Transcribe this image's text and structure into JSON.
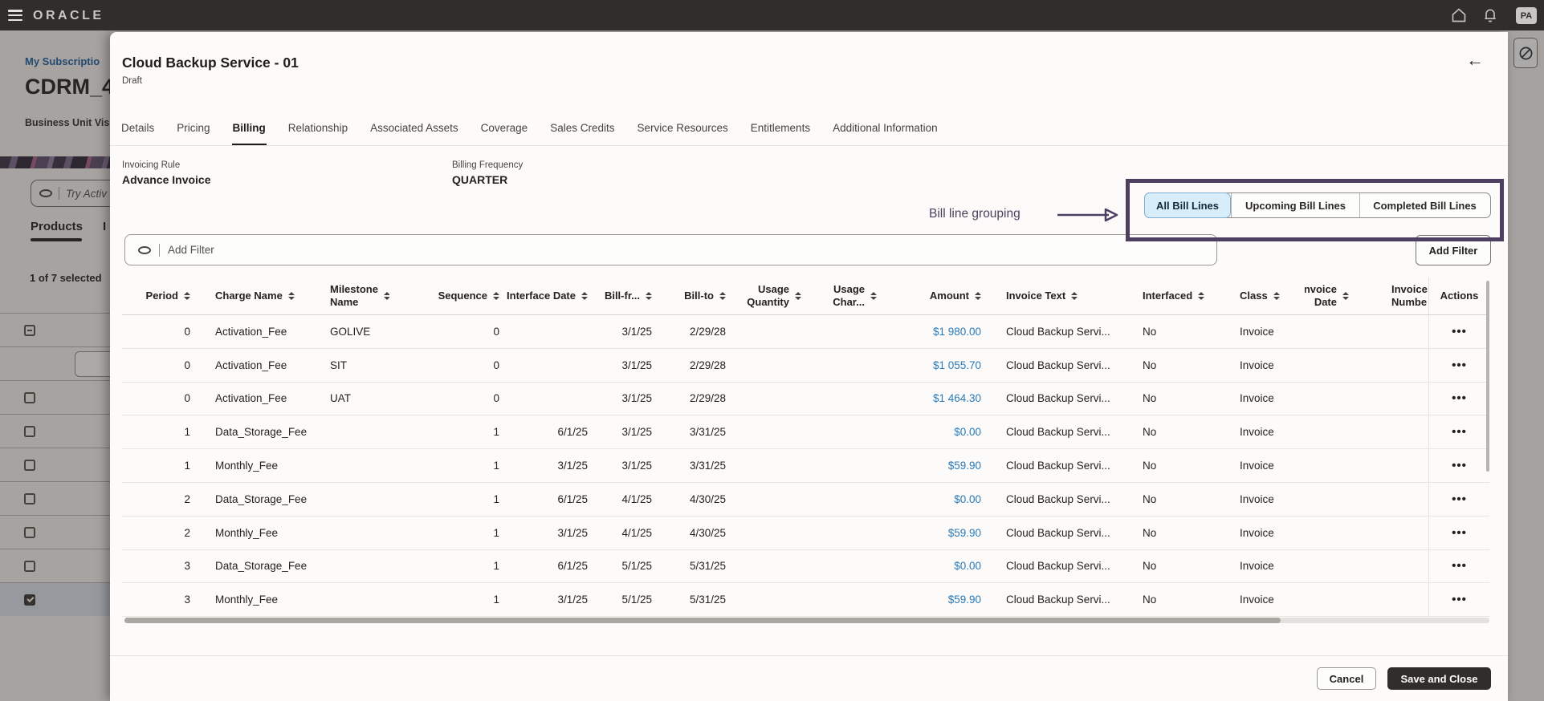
{
  "topbar": {
    "brand": "ORACLE",
    "avatar_initials": "PA"
  },
  "backdrop": {
    "breadcrumb": "My Subscriptio",
    "title": "CDRM_4",
    "subtitle": "Business Unit Visi",
    "assistant_placeholder": "Try Activ",
    "tab_primary": "Products",
    "tab_secondary": "I",
    "selection_summary": "1 of 7 selected",
    "rows": [
      "indeterminate",
      "field",
      "unchecked",
      "unchecked",
      "unchecked",
      "unchecked",
      "unchecked",
      "unchecked",
      "checked"
    ]
  },
  "modal": {
    "title": "Cloud Backup Service - 01",
    "status": "Draft",
    "tabs": [
      "Details",
      "Pricing",
      "Billing",
      "Relationship",
      "Associated Assets",
      "Coverage",
      "Sales Credits",
      "Service Resources",
      "Entitlements",
      "Additional Information"
    ],
    "active_tab": "Billing",
    "fields": [
      {
        "label": "Invoicing Rule",
        "value": "Advance Invoice"
      },
      {
        "label": "Billing Frequency",
        "value": "QUARTER"
      }
    ],
    "annotation": {
      "label": "Bill line grouping",
      "color": "#4d3f60"
    },
    "bill_line_groups": [
      "All Bill Lines",
      "Upcoming Bill Lines",
      "Completed Bill Lines"
    ],
    "selected_group": "All Bill Lines",
    "filter_placeholder": "Add Filter",
    "add_filter_label": "Add Filter",
    "table": {
      "columns": [
        {
          "label": "Period",
          "sortable": true
        },
        {
          "label": "Charge Name",
          "sortable": true
        },
        {
          "label": "Milestone Name",
          "sortable": true
        },
        {
          "label": "Sequence",
          "sortable": true
        },
        {
          "label": "Interface Date",
          "sortable": true
        },
        {
          "label": "Bill-fr...",
          "sortable": true
        },
        {
          "label": "Bill-to",
          "sortable": true
        },
        {
          "label": "Usage Quantity",
          "sortable": true
        },
        {
          "label": "Usage Char...",
          "sortable": true
        },
        {
          "label": "Amount",
          "sortable": true
        },
        {
          "label": "Invoice Text",
          "sortable": true
        },
        {
          "label": "Interfaced",
          "sortable": true
        },
        {
          "label": "Class",
          "sortable": true
        },
        {
          "label": "Invoice Date",
          "sortable": true
        },
        {
          "label": "Invoice Numbe",
          "sortable": false
        },
        {
          "label": "Actions",
          "sortable": false
        }
      ],
      "rows": [
        [
          "0",
          "Activation_Fee",
          "GOLIVE",
          "0",
          "",
          "3/1/25",
          "2/29/28",
          "",
          "",
          "$1 980.00",
          "Cloud Backup Servi...",
          "No",
          "Invoice",
          "",
          ""
        ],
        [
          "0",
          "Activation_Fee",
          "SIT",
          "0",
          "",
          "3/1/25",
          "2/29/28",
          "",
          "",
          "$1 055.70",
          "Cloud Backup Servi...",
          "No",
          "Invoice",
          "",
          ""
        ],
        [
          "0",
          "Activation_Fee",
          "UAT",
          "0",
          "",
          "3/1/25",
          "2/29/28",
          "",
          "",
          "$1 464.30",
          "Cloud Backup Servi...",
          "No",
          "Invoice",
          "",
          ""
        ],
        [
          "1",
          "Data_Storage_Fee",
          "",
          "1",
          "6/1/25",
          "3/1/25",
          "3/31/25",
          "",
          "",
          "$0.00",
          "Cloud Backup Servi...",
          "No",
          "Invoice",
          "",
          ""
        ],
        [
          "1",
          "Monthly_Fee",
          "",
          "1",
          "3/1/25",
          "3/1/25",
          "3/31/25",
          "",
          "",
          "$59.90",
          "Cloud Backup Servi...",
          "No",
          "Invoice",
          "",
          ""
        ],
        [
          "2",
          "Data_Storage_Fee",
          "",
          "1",
          "6/1/25",
          "4/1/25",
          "4/30/25",
          "",
          "",
          "$0.00",
          "Cloud Backup Servi...",
          "No",
          "Invoice",
          "",
          ""
        ],
        [
          "2",
          "Monthly_Fee",
          "",
          "1",
          "3/1/25",
          "4/1/25",
          "4/30/25",
          "",
          "",
          "$59.90",
          "Cloud Backup Servi...",
          "No",
          "Invoice",
          "",
          ""
        ],
        [
          "3",
          "Data_Storage_Fee",
          "",
          "1",
          "6/1/25",
          "5/1/25",
          "5/31/25",
          "",
          "",
          "$0.00",
          "Cloud Backup Servi...",
          "No",
          "Invoice",
          "",
          ""
        ],
        [
          "3",
          "Monthly_Fee",
          "",
          "1",
          "3/1/25",
          "5/1/25",
          "5/31/25",
          "",
          "",
          "$59.90",
          "Cloud Backup Servi...",
          "No",
          "Invoice",
          "",
          ""
        ]
      ],
      "row_actions_glyph": "•••"
    },
    "footer": {
      "cancel_label": "Cancel",
      "save_label": "Save and Close"
    }
  }
}
